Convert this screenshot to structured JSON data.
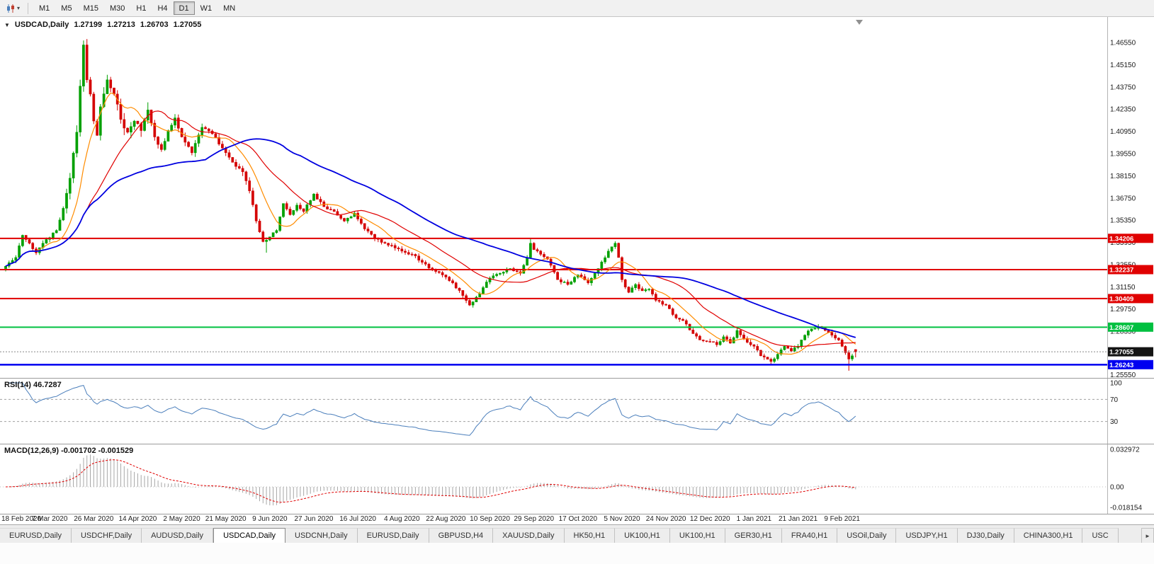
{
  "toolbar": {
    "chart_type_icon": "candlestick-chart-icon",
    "dropdown_icon": "▾",
    "periods": [
      "M1",
      "M5",
      "M15",
      "M30",
      "H1",
      "H4",
      "D1",
      "W1",
      "MN"
    ],
    "active_period": "D1"
  },
  "chart": {
    "title": {
      "collapse_icon": "▼",
      "symbol": "USDCAD,Daily",
      "open": "1.27199",
      "high": "1.27213",
      "low": "1.26703",
      "close": "1.27055"
    },
    "colors": {
      "bull": "#00A000",
      "bear": "#D40000",
      "current_price_line": "#888888",
      "current_price_tag": "#141414"
    },
    "price_axis": {
      "labels": [
        "1.46550",
        "1.45150",
        "1.43750",
        "1.42350",
        "1.40950",
        "1.39550",
        "1.38150",
        "1.36750",
        "1.35350",
        "1.33950",
        "1.32550",
        "1.31150",
        "1.29750",
        "1.28350",
        "1.26950",
        "1.25550"
      ]
    },
    "hlines": [
      {
        "value": "1.34206",
        "price": 1.34206,
        "color": "#E00000",
        "width": 2
      },
      {
        "value": "1.32237",
        "price": 1.32237,
        "color": "#E00000",
        "width": 2
      },
      {
        "value": "1.30409",
        "price": 1.30409,
        "color": "#E00000",
        "width": 2
      },
      {
        "value": "1.28607",
        "price": 1.28607,
        "color": "#00C040",
        "width": 2
      },
      {
        "value": "1.26243",
        "price": 1.26243,
        "color": "#0000F0",
        "width": 2.5
      }
    ],
    "current_price": {
      "value": "1.27055",
      "price": 1.27055
    }
  },
  "rsi": {
    "label": "RSI(14) 46.7287",
    "period": 14,
    "current": 46.7287,
    "levels": [
      "100",
      "70",
      "30"
    ],
    "line_color": "#4A7EBB"
  },
  "macd": {
    "label": "MACD(12,26,9) -0.001702 -0.001529",
    "fast": 12,
    "slow": 26,
    "signal": 9,
    "macd_current": -0.001702,
    "signal_current": -0.001529,
    "scale_labels": [
      "0.032972",
      "0.00",
      "-0.018154"
    ],
    "histogram_color": "#A6A6A6",
    "signal_color": "#E00000"
  },
  "tabs": {
    "items": [
      "EURUSD,Daily",
      "USDCHF,Daily",
      "AUDUSD,Daily",
      "USDCAD,Daily",
      "USDCNH,Daily",
      "EURUSD,Daily",
      "GBPUSD,H4",
      "XAUUSD,Daily",
      "HK50,H1",
      "UK100,H1",
      "UK100,H1",
      "GER30,H1",
      "FRA40,H1",
      "USOil,Daily",
      "USDJPY,H1",
      "DJ30,Daily",
      "CHINA300,H1",
      "USC"
    ],
    "active": "USDCAD,Daily",
    "scroll_right_icon": "►"
  },
  "chart_data": {
    "type": "candlestick",
    "symbol": "USDCAD",
    "timeframe": "Daily",
    "bars": 252,
    "ylim": [
      1.2541,
      1.4816
    ],
    "date_ticks": [
      "18 Feb 2020",
      "7 Mar 2020",
      "26 Mar 2020",
      "14 Apr 2020",
      "2 May 2020",
      "21 May 2020",
      "9 Jun 2020",
      "27 Jun 2020",
      "16 Jul 2020",
      "4 Aug 2020",
      "22 Aug 2020",
      "10 Sep 2020",
      "29 Sep 2020",
      "17 Oct 2020",
      "5 Nov 2020",
      "24 Nov 2020",
      "12 Dec 2020",
      "1 Jan 2021",
      "21 Jan 2021",
      "9 Feb 2021"
    ],
    "bars_per_tick": 13,
    "close_anchors": [
      [
        0,
        1.3245
      ],
      [
        3,
        1.33
      ],
      [
        5,
        1.344
      ],
      [
        7,
        1.339
      ],
      [
        9,
        1.333
      ],
      [
        11,
        1.339
      ],
      [
        13,
        1.3425
      ],
      [
        15,
        1.347
      ],
      [
        17,
        1.361
      ],
      [
        19,
        1.38
      ],
      [
        21,
        1.409
      ],
      [
        22,
        1.438
      ],
      [
        23,
        1.464
      ],
      [
        24,
        1.442
      ],
      [
        25,
        1.433
      ],
      [
        26,
        1.416
      ],
      [
        27,
        1.407
      ],
      [
        28,
        1.425
      ],
      [
        30,
        1.442
      ],
      [
        32,
        1.433
      ],
      [
        34,
        1.417
      ],
      [
        36,
        1.409
      ],
      [
        38,
        1.416
      ],
      [
        40,
        1.41
      ],
      [
        42,
        1.423
      ],
      [
        44,
        1.406
      ],
      [
        46,
        1.398
      ],
      [
        48,
        1.41
      ],
      [
        50,
        1.418
      ],
      [
        52,
        1.406
      ],
      [
        55,
        1.396
      ],
      [
        58,
        1.412
      ],
      [
        61,
        1.408
      ],
      [
        64,
        1.399
      ],
      [
        67,
        1.39
      ],
      [
        70,
        1.384
      ],
      [
        72,
        1.372
      ],
      [
        74,
        1.353
      ],
      [
        76,
        1.34
      ],
      [
        78,
        1.343
      ],
      [
        80,
        1.347
      ],
      [
        82,
        1.364
      ],
      [
        84,
        1.357
      ],
      [
        86,
        1.363
      ],
      [
        88,
        1.359
      ],
      [
        91,
        1.37
      ],
      [
        94,
        1.362
      ],
      [
        97,
        1.359
      ],
      [
        100,
        1.353
      ],
      [
        103,
        1.358
      ],
      [
        106,
        1.348
      ],
      [
        109,
        1.342
      ],
      [
        112,
        1.339
      ],
      [
        115,
        1.336
      ],
      [
        117,
        1.334
      ],
      [
        120,
        1.332
      ],
      [
        123,
        1.327
      ],
      [
        126,
        1.322
      ],
      [
        129,
        1.319
      ],
      [
        132,
        1.314
      ],
      [
        135,
        1.306
      ],
      [
        137,
        1.3
      ],
      [
        139,
        1.305
      ],
      [
        141,
        1.311
      ],
      [
        143,
        1.317
      ],
      [
        146,
        1.32
      ],
      [
        149,
        1.323
      ],
      [
        152,
        1.32
      ],
      [
        154,
        1.33
      ],
      [
        155,
        1.339
      ],
      [
        156,
        1.335
      ],
      [
        158,
        1.332
      ],
      [
        160,
        1.329
      ],
      [
        163,
        1.316
      ],
      [
        166,
        1.313
      ],
      [
        169,
        1.319
      ],
      [
        172,
        1.314
      ],
      [
        175,
        1.323
      ],
      [
        178,
        1.334
      ],
      [
        180,
        1.339
      ],
      [
        181,
        1.33
      ],
      [
        182,
        1.316
      ],
      [
        184,
        1.308
      ],
      [
        186,
        1.313
      ],
      [
        188,
        1.309
      ],
      [
        190,
        1.31
      ],
      [
        192,
        1.303
      ],
      [
        195,
        1.3
      ],
      [
        197,
        1.294
      ],
      [
        199,
        1.291
      ],
      [
        201,
        1.288
      ],
      [
        203,
        1.282
      ],
      [
        205,
        1.278
      ],
      [
        208,
        1.277
      ],
      [
        210,
        1.275
      ],
      [
        212,
        1.28
      ],
      [
        214,
        1.276
      ],
      [
        216,
        1.284
      ],
      [
        218,
        1.279
      ],
      [
        220,
        1.275
      ],
      [
        221,
        1.274
      ],
      [
        223,
        1.268
      ],
      [
        226,
        1.2645
      ],
      [
        228,
        1.269
      ],
      [
        230,
        1.274
      ],
      [
        232,
        1.271
      ],
      [
        234,
        1.274
      ],
      [
        236,
        1.281
      ],
      [
        238,
        1.285
      ],
      [
        240,
        1.2865
      ],
      [
        242,
        1.284
      ],
      [
        244,
        1.281
      ],
      [
        246,
        1.278
      ],
      [
        247,
        1.274
      ],
      [
        248,
        1.27
      ],
      [
        249,
        1.266
      ],
      [
        250,
        1.268
      ],
      [
        251,
        1.27055
      ]
    ],
    "force_highs": {
      "23": 1.4668,
      "42": 1.4278,
      "155": 1.3422,
      "180": 1.3402
    },
    "force_lows": {
      "77": 1.333,
      "137": 1.2994,
      "226": 1.2625,
      "249": 1.2586
    },
    "last_bar": {
      "open": 1.27199,
      "high": 1.27213,
      "low": 1.26703,
      "close": 1.27055
    },
    "moving_averages": [
      {
        "period": 10,
        "color": "#FF8C00"
      },
      {
        "period": 25,
        "color": "#E00000"
      },
      {
        "period": 60,
        "color": "#0000E0"
      }
    ],
    "horizontal_lines": [
      1.34206,
      1.32237,
      1.30409,
      1.28607,
      1.26243
    ]
  }
}
